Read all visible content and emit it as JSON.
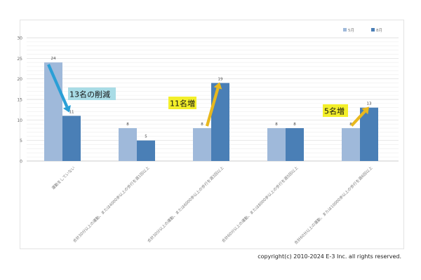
{
  "chart_data": {
    "type": "bar",
    "categories": [
      "運動をしていない",
      "合計30分以上の運動、または4000歩以上の歩行を週1回以上",
      "合計30分以上の運動、または6000歩以上の歩行を週3回以上",
      "合計60分以上の運動、または8000歩以上の歩行を週5回以上",
      "合計60分以上の運動、または10000歩以上の歩行を週6回以上"
    ],
    "series": [
      {
        "name": "5月",
        "values": [
          24,
          8,
          8,
          8,
          8
        ],
        "color": "#9fb9da"
      },
      {
        "name": "8月",
        "values": [
          11,
          5,
          19,
          8,
          13
        ],
        "color": "#4a7fb6"
      }
    ],
    "ylim": [
      0,
      30
    ],
    "yticks": [
      0,
      5,
      10,
      15,
      20,
      25,
      30
    ],
    "grid": true,
    "legend": "top-right",
    "annotations": [
      {
        "text": "13名の削減",
        "background": "#a9dce6",
        "arrow_color": "#2a9fd6"
      },
      {
        "text": "11名増",
        "background": "#f3ef2a",
        "arrow_color": "#e8b81e"
      },
      {
        "text": "5名増",
        "background": "#f3ef2a",
        "arrow_color": "#e8b81e"
      }
    ]
  },
  "footer": {
    "copyright": "copyright(c) 2010-2024 E-3 Inc. all rights reserved."
  }
}
